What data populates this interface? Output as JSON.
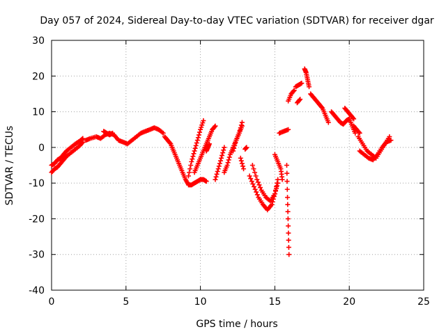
{
  "chart_data": {
    "type": "scatter",
    "title": "Day 057 of 2024, Sidereal Day-to-day VTEC variation (SDTVAR) for receiver dgar",
    "xlabel": "GPS time / hours",
    "ylabel": "SDTVAR / TECUs",
    "xlim": [
      0,
      25
    ],
    "ylim": [
      -40,
      30
    ],
    "x_ticks": [
      0,
      5,
      10,
      15,
      20,
      25
    ],
    "y_ticks": [
      -40,
      -30,
      -20,
      -10,
      0,
      10,
      20,
      30
    ],
    "grid": true,
    "marker": "+",
    "color": "#ff0000",
    "series": [
      {
        "name": "SDTVAR",
        "segments": [
          {
            "x": [
              0.0,
              0.2,
              0.4,
              0.6,
              0.8,
              1.0,
              1.3,
              1.6,
              1.9,
              2.1
            ],
            "y": [
              -5,
              -4.5,
              -3.5,
              -3,
              -2,
              -1,
              0,
              1,
              1.8,
              2.5
            ]
          },
          {
            "x": [
              0.0,
              0.2,
              0.4,
              0.6,
              0.8,
              1.0,
              1.3,
              1.6,
              1.9,
              2.1
            ],
            "y": [
              -7,
              -6,
              -5.5,
              -4.5,
              -3.5,
              -2.5,
              -1.5,
              -0.5,
              0.5,
              1.5
            ]
          },
          {
            "x": [
              2.3,
              2.6,
              3.0,
              3.3,
              3.6,
              3.9,
              4.2,
              4.5,
              4.8,
              5.1,
              5.4,
              5.7,
              6.0,
              6.3,
              6.6,
              6.9,
              7.2,
              7.5
            ],
            "y": [
              2,
              2.5,
              3,
              2.5,
              3.5,
              4,
              3.5,
              2,
              1.5,
              1,
              2,
              3,
              4,
              4.5,
              5,
              5.5,
              5,
              4
            ]
          },
          {
            "x": [
              3.5,
              3.7,
              3.9,
              4.1
            ],
            "y": [
              4.5,
              4,
              3.5,
              4
            ]
          },
          {
            "x": [
              7.6,
              7.8,
              8.0,
              8.2,
              8.4,
              8.6,
              8.8,
              9.0,
              9.2,
              9.4,
              9.6,
              9.8,
              10.0,
              10.2,
              10.4
            ],
            "y": [
              3,
              2,
              1,
              -1,
              -3,
              -5,
              -7,
              -9,
              -10.5,
              -10.5,
              -10,
              -9.5,
              -9,
              -9,
              -9.5
            ]
          },
          {
            "x": [
              9.2,
              9.4,
              9.6,
              9.8,
              10.0,
              10.2
            ],
            "y": [
              -8,
              -4,
              -1,
              2,
              5,
              7.5
            ]
          },
          {
            "x": [
              9.6,
              9.8,
              10.0,
              10.2,
              10.4,
              10.6,
              10.8,
              11.0
            ],
            "y": [
              -7,
              -5,
              -3,
              -1,
              1,
              3,
              5,
              6
            ]
          },
          {
            "x": [
              10.4,
              10.5,
              10.6
            ],
            "y": [
              -1,
              0,
              1
            ]
          },
          {
            "x": [
              11.0,
              11.2,
              11.4,
              11.6
            ],
            "y": [
              -9,
              -6,
              -3,
              0
            ]
          },
          {
            "x": [
              11.6,
              11.8,
              12.0,
              12.2,
              12.4,
              12.6,
              12.8
            ],
            "y": [
              -7,
              -5,
              -2,
              0,
              2,
              4,
              6
            ]
          },
          {
            "x": [
              12.2,
              12.4,
              12.6,
              12.8
            ],
            "y": [
              -1,
              2,
              4,
              7
            ]
          },
          {
            "x": [
              12.7,
              12.9
            ],
            "y": [
              -3,
              -6
            ]
          },
          {
            "x": [
              13.0,
              13.1
            ],
            "y": [
              -0.5,
              0
            ]
          },
          {
            "x": [
              13.3,
              13.6,
              13.9,
              14.2,
              14.5,
              14.8,
              15.0,
              15.2
            ],
            "y": [
              -8,
              -11,
              -14,
              -16,
              -17.5,
              -16,
              -13,
              -9
            ]
          },
          {
            "x": [
              13.5,
              13.8,
              14.1,
              14.4,
              14.7,
              15.0,
              15.2
            ],
            "y": [
              -5,
              -9,
              -12,
              -14,
              -15,
              -13,
              -10
            ]
          },
          {
            "x": [
              15.0,
              15.2,
              15.4,
              15.5
            ],
            "y": [
              -2,
              -4,
              -6,
              -9
            ]
          },
          {
            "x": [
              15.3,
              15.6,
              15.9
            ],
            "y": [
              4,
              4.5,
              5
            ]
          },
          {
            "x": [
              15.8,
              15.85,
              15.9,
              15.95
            ],
            "y": [
              -5,
              -14,
              -22,
              -30
            ]
          },
          {
            "x": [
              15.9,
              16.1,
              16.3
            ],
            "y": [
              13,
              15,
              16
            ]
          },
          {
            "x": [
              16.4,
              16.6,
              16.8
            ],
            "y": [
              17,
              17.5,
              18
            ]
          },
          {
            "x": [
              16.5,
              16.7
            ],
            "y": [
              12.5,
              13.5
            ]
          },
          {
            "x": [
              17.0,
              17.1,
              17.2,
              17.3
            ],
            "y": [
              22,
              21,
              19,
              17
            ]
          },
          {
            "x": [
              17.4,
              17.6,
              17.8,
              18.0,
              18.2,
              18.4,
              18.6
            ],
            "y": [
              15,
              14,
              13,
              12,
              11,
              9,
              7
            ]
          },
          {
            "x": [
              18.8,
              19.0,
              19.2,
              19.4,
              19.6,
              19.8,
              20.0,
              20.2,
              20.4
            ],
            "y": [
              10,
              9,
              8,
              7,
              6.5,
              7.5,
              8,
              6,
              4
            ]
          },
          {
            "x": [
              19.7,
              19.9,
              20.1,
              20.3
            ],
            "y": [
              11,
              10,
              9,
              8
            ]
          },
          {
            "x": [
              20.6,
              20.9,
              21.2,
              21.5,
              21.8,
              22.1,
              22.4,
              22.7
            ],
            "y": [
              3,
              1,
              -1,
              -2,
              -3,
              -1,
              1,
              3
            ]
          },
          {
            "x": [
              20.7,
              21.0,
              21.3,
              21.6,
              21.9,
              22.2,
              22.5,
              22.8
            ],
            "y": [
              -1,
              -2,
              -3,
              -3.5,
              -2,
              0,
              1.5,
              2
            ]
          },
          {
            "x": [
              20.3,
              20.5,
              20.7
            ],
            "y": [
              6,
              5,
              4
            ]
          }
        ]
      }
    ],
    "colors": {
      "marker": "#ff0000",
      "grid": "#a0a0a0",
      "axes": "#000000",
      "background": "#ffffff"
    }
  }
}
